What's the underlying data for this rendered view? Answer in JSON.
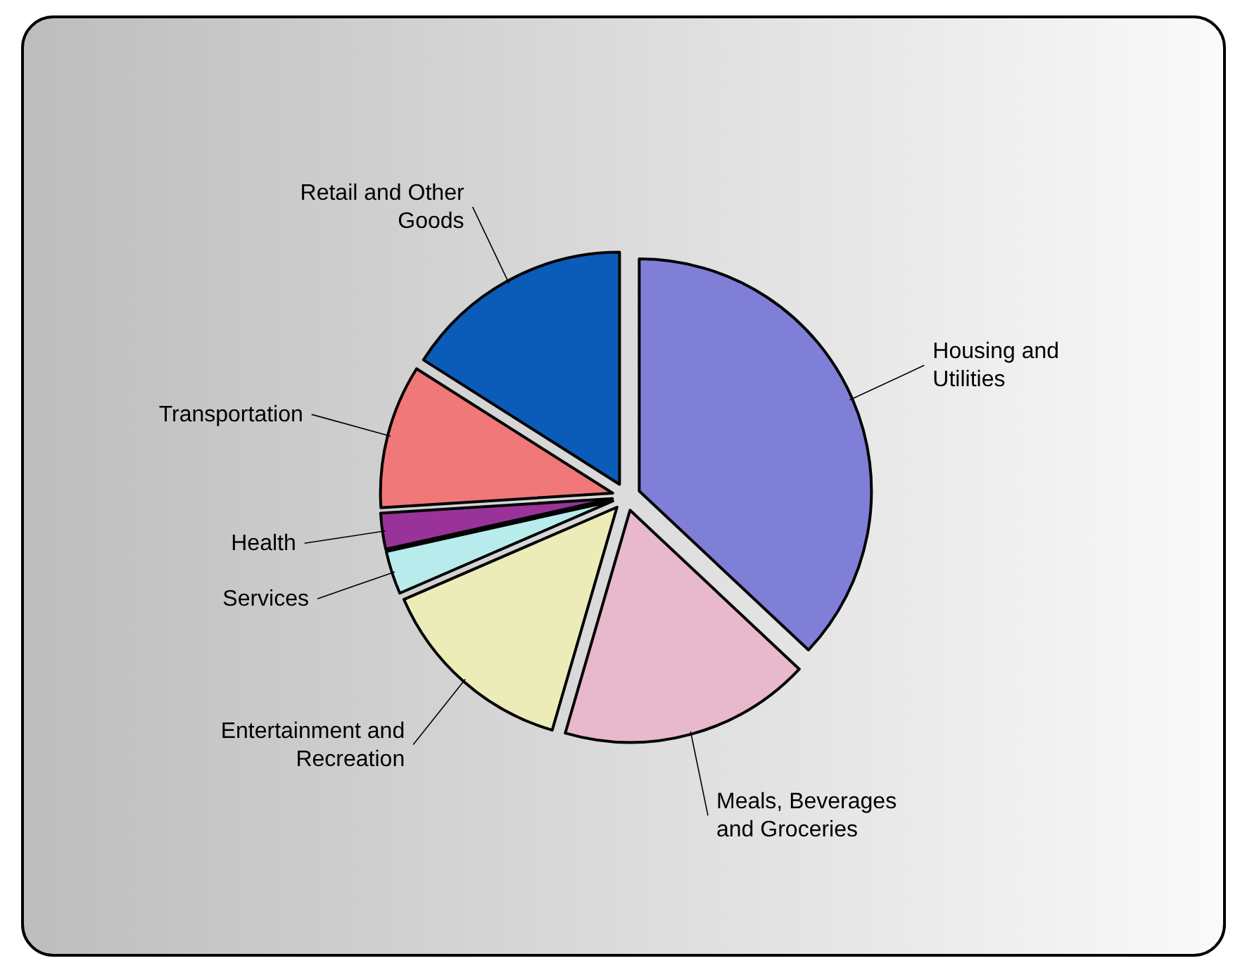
{
  "chart_data": {
    "type": "pie",
    "categories": [
      "Housing and Utilities",
      "Meals, Beverages and Groceries",
      "Entertainment and Recreation",
      "Services",
      "Health",
      "Transportation",
      "Retail and Other Goods"
    ],
    "values": [
      37,
      17.5,
      14,
      3,
      2.5,
      10,
      16
    ],
    "colors": [
      "#7f7fd8",
      "#e8b8cc",
      "#ececb8",
      "#b8ecec",
      "#993399",
      "#f07878",
      "#0a5cb8"
    ]
  }
}
